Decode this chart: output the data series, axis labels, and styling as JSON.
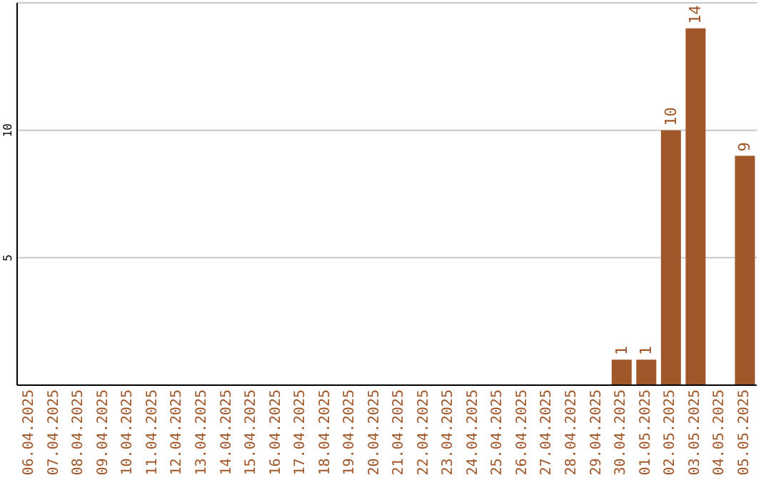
{
  "chart_data": {
    "type": "bar",
    "categories": [
      "06.04.2025",
      "07.04.2025",
      "08.04.2025",
      "09.04.2025",
      "10.04.2025",
      "11.04.2025",
      "12.04.2025",
      "13.04.2025",
      "14.04.2025",
      "15.04.2025",
      "16.04.2025",
      "17.04.2025",
      "18.04.2025",
      "19.04.2025",
      "20.04.2025",
      "21.04.2025",
      "22.04.2025",
      "23.04.2025",
      "24.04.2025",
      "25.04.2025",
      "26.04.2025",
      "27.04.2025",
      "28.04.2025",
      "29.04.2025",
      "30.04.2025",
      "01.05.2025",
      "02.05.2025",
      "03.05.2025",
      "04.05.2025",
      "05.05.2025"
    ],
    "values": [
      0,
      0,
      0,
      0,
      0,
      0,
      0,
      0,
      0,
      0,
      0,
      0,
      0,
      0,
      0,
      0,
      0,
      0,
      0,
      0,
      0,
      0,
      0,
      0,
      1,
      1,
      10,
      14,
      0,
      9
    ],
    "value_labels": [
      null,
      null,
      null,
      null,
      null,
      null,
      null,
      null,
      null,
      null,
      null,
      null,
      null,
      null,
      null,
      null,
      null,
      null,
      null,
      null,
      null,
      null,
      null,
      null,
      "1",
      "1",
      "10",
      "14",
      null,
      "9"
    ],
    "color": "#a0572a",
    "ylim": [
      0,
      15
    ],
    "yticks": [
      5,
      10
    ],
    "grid": "y"
  }
}
